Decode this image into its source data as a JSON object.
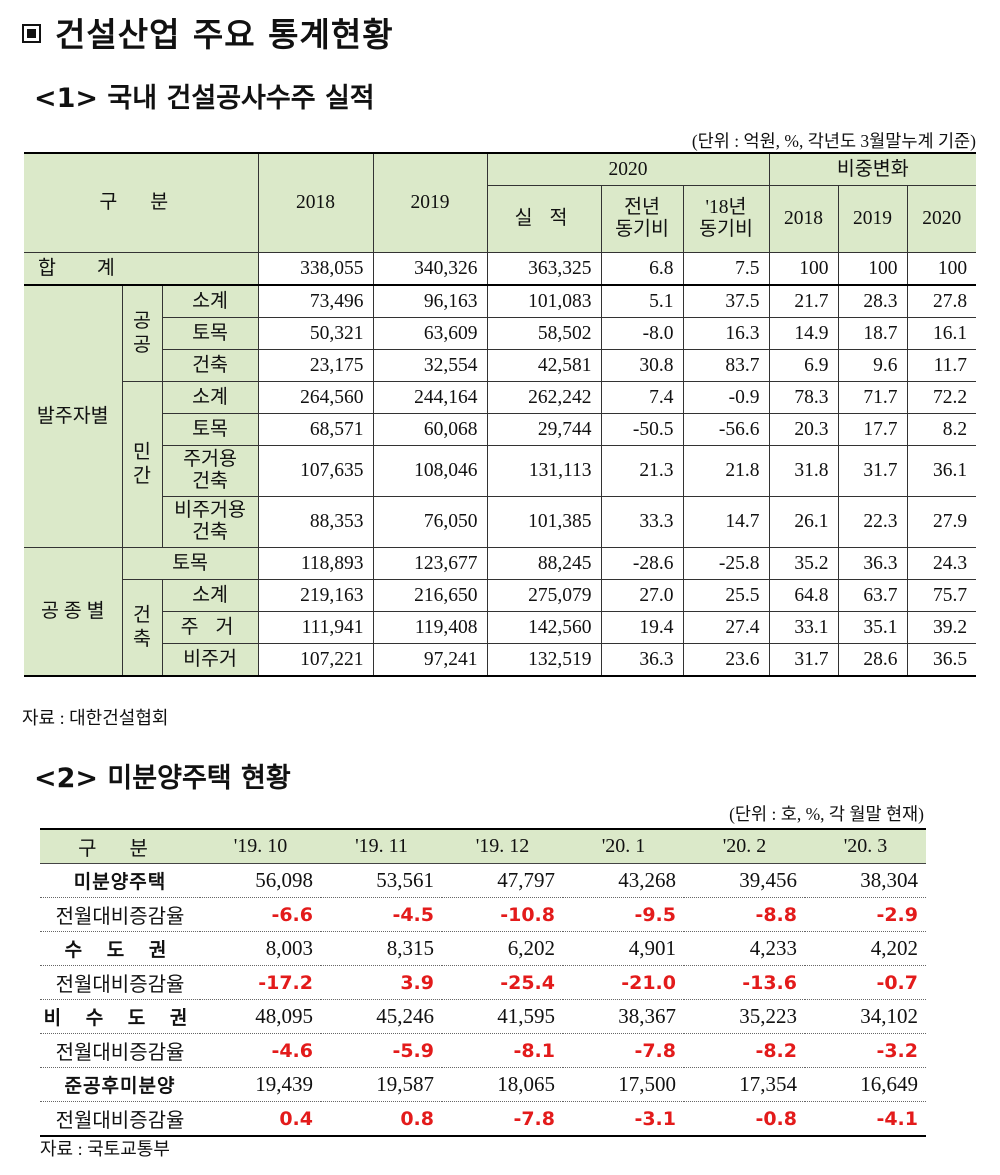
{
  "title": "건설산업 주요 통계현황",
  "section1": {
    "title": "<1> 국내 건설공사수주 실적",
    "unit": "(단위 : 억원, %, 각년도 3월말누계 기준)",
    "source": "자료 : 대한건설협회",
    "header": {
      "gubun": "구 분",
      "y2018": "2018",
      "y2019": "2019",
      "y2020": "2020",
      "share_change": "비중변화",
      "actual": "실 적",
      "yoy_l1": "전년",
      "yoy_l2": "동기비",
      "vs18_l1": "'18년",
      "vs18_l2": "동기비",
      "s2018": "2018",
      "s2019": "2019",
      "s2020": "2020"
    },
    "labels": {
      "total": "합 계",
      "by_client": "발주자별",
      "public_1": "공",
      "public_2": "공",
      "private_1": "민",
      "private_2": "간",
      "by_type": "공 종 별",
      "build_1": "건",
      "build_2": "축"
    },
    "rows": [
      {
        "label": "",
        "v": [
          "338,055",
          "340,326",
          "363,325",
          "6.8",
          "7.5",
          "100",
          "100",
          "100"
        ]
      },
      {
        "label": "소계",
        "v": [
          "73,496",
          "96,163",
          "101,083",
          "5.1",
          "37.5",
          "21.7",
          "28.3",
          "27.8"
        ]
      },
      {
        "label": "토목",
        "v": [
          "50,321",
          "63,609",
          "58,502",
          "-8.0",
          "16.3",
          "14.9",
          "18.7",
          "16.1"
        ]
      },
      {
        "label": "건축",
        "v": [
          "23,175",
          "32,554",
          "42,581",
          "30.8",
          "83.7",
          "6.9",
          "9.6",
          "11.7"
        ]
      },
      {
        "label": "소계",
        "v": [
          "264,560",
          "244,164",
          "262,242",
          "7.4",
          "-0.9",
          "78.3",
          "71.7",
          "72.2"
        ]
      },
      {
        "label": "토목",
        "v": [
          "68,571",
          "60,068",
          "29,744",
          "-50.5",
          "-56.6",
          "20.3",
          "17.7",
          "8.2"
        ]
      },
      {
        "label_1": "주거용",
        "label_2": "건축",
        "v": [
          "107,635",
          "108,046",
          "131,113",
          "21.3",
          "21.8",
          "31.8",
          "31.7",
          "36.1"
        ]
      },
      {
        "label_1": "비주거용",
        "label_2": "건축",
        "v": [
          "88,353",
          "76,050",
          "101,385",
          "33.3",
          "14.7",
          "26.1",
          "22.3",
          "27.9"
        ]
      },
      {
        "label": "토목",
        "v": [
          "118,893",
          "123,677",
          "88,245",
          "-28.6",
          "-25.8",
          "35.2",
          "36.3",
          "24.3"
        ]
      },
      {
        "label": "소계",
        "v": [
          "219,163",
          "216,650",
          "275,079",
          "27.0",
          "25.5",
          "64.8",
          "63.7",
          "75.7"
        ]
      },
      {
        "label": "주 거",
        "v": [
          "111,941",
          "119,408",
          "142,560",
          "19.4",
          "27.4",
          "33.1",
          "35.1",
          "39.2"
        ]
      },
      {
        "label": "비주거",
        "v": [
          "107,221",
          "97,241",
          "132,519",
          "36.3",
          "23.6",
          "31.7",
          "28.6",
          "36.5"
        ]
      }
    ]
  },
  "section2": {
    "title": "<2> 미분양주택 현황",
    "unit": "(단위 : 호, %, 각 월말 현재)",
    "source": "자료 : 국토교통부",
    "header": [
      "구 분",
      "'19. 10",
      "'19. 11",
      "'19. 12",
      "'20. 1",
      "'20. 2",
      "'20. 3"
    ],
    "rows": [
      {
        "label": "미분양주택",
        "v": [
          "56,098",
          "53,561",
          "47,797",
          "43,268",
          "39,456",
          "38,304"
        ]
      },
      {
        "label": "전월대비증감율",
        "v": [
          "-6.6",
          "-4.5",
          "-10.8",
          "-9.5",
          "-8.8",
          "-2.9"
        ]
      },
      {
        "label": "수 도 권",
        "v": [
          "8,003",
          "8,315",
          "6,202",
          "4,901",
          "4,233",
          "4,202"
        ]
      },
      {
        "label": "전월대비증감율",
        "v": [
          "-17.2",
          "3.9",
          "-25.4",
          "-21.0",
          "-13.6",
          "-0.7"
        ]
      },
      {
        "label": "비 수 도 권",
        "v": [
          "48,095",
          "45,246",
          "41,595",
          "38,367",
          "35,223",
          "34,102"
        ]
      },
      {
        "label": "전월대비증감율",
        "v": [
          "-4.6",
          "-5.9",
          "-8.1",
          "-7.8",
          "-8.2",
          "-3.2"
        ]
      },
      {
        "label": "준공후미분양",
        "v": [
          "19,439",
          "19,587",
          "18,065",
          "17,500",
          "17,354",
          "16,649"
        ]
      },
      {
        "label": "전월대비증감율",
        "v": [
          "0.4",
          "0.8",
          "-7.8",
          "-3.1",
          "-0.8",
          "-4.1"
        ]
      }
    ],
    "colors": {
      "negative_change": "#e31b1b",
      "header_bg": "#dbe9c9"
    }
  }
}
